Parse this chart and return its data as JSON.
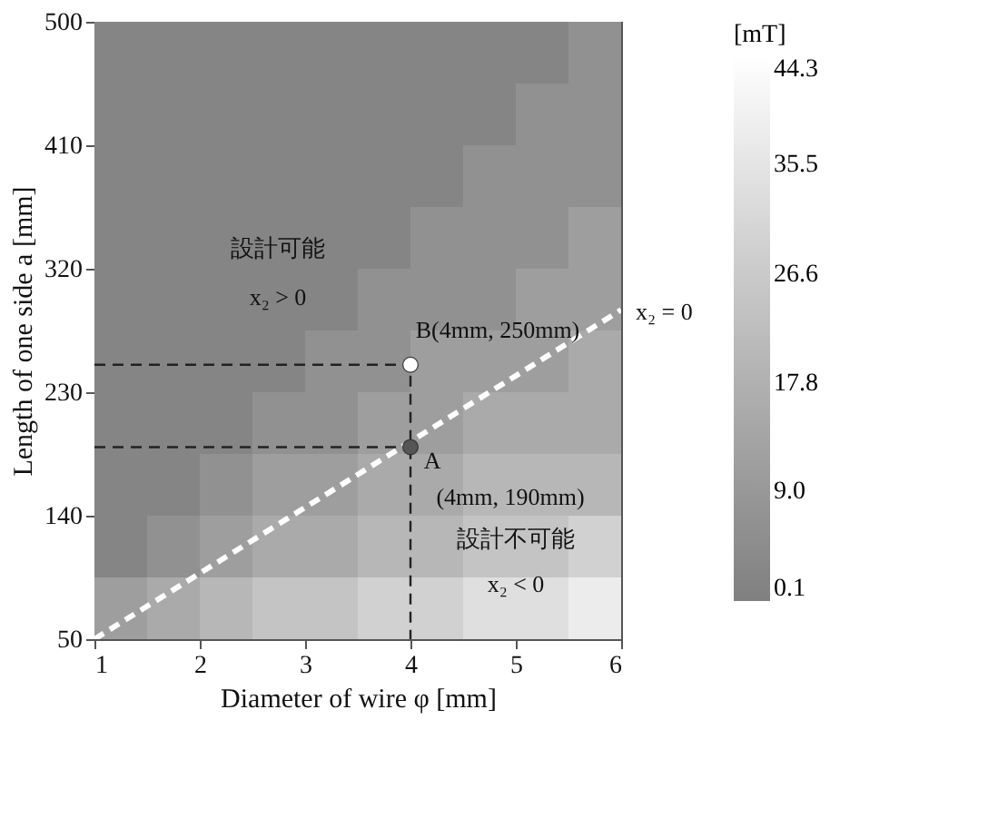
{
  "chart_data": {
    "type": "heatmap",
    "xlabel": "Diameter of wire φ [mm]",
    "ylabel": "Length of one side a [mm]",
    "clabel": "[mT]",
    "x": [
      1.25,
      1.75,
      2.25,
      2.75,
      3.25,
      3.75,
      4.25,
      4.75,
      5.25,
      5.75
    ],
    "y": [
      477.5,
      432.5,
      387.5,
      342.5,
      297.5,
      252.5,
      207.5,
      162.5,
      117.5,
      72.5
    ],
    "cells": [
      [
        2,
        2,
        2,
        2,
        2,
        2,
        2,
        2,
        2,
        6.5
      ],
      [
        2,
        2,
        2,
        2,
        2,
        2,
        2,
        2,
        6.5,
        6.5
      ],
      [
        2,
        2,
        2,
        2,
        2,
        2,
        2,
        6.5,
        6.5,
        6.5
      ],
      [
        2,
        2,
        2,
        2,
        2,
        2,
        6.5,
        6.5,
        6.5,
        11
      ],
      [
        2,
        2,
        2,
        2,
        2,
        6.5,
        6.5,
        6.5,
        11,
        11
      ],
      [
        2,
        2,
        2,
        2,
        6.5,
        6.5,
        11,
        11,
        11,
        15.5
      ],
      [
        2,
        2,
        2,
        6.5,
        6.5,
        11,
        11,
        15.5,
        15.5,
        15.5
      ],
      [
        2,
        2,
        6.5,
        11,
        11,
        15.5,
        15.5,
        20,
        20,
        20
      ],
      [
        2,
        6.5,
        11,
        15.5,
        15.5,
        20,
        20,
        24.5,
        24.5,
        29
      ],
      [
        11,
        15.5,
        20,
        24.5,
        24.5,
        29,
        29,
        33.5,
        33.5,
        38
      ]
    ],
    "clim": [
      0.1,
      44.3
    ],
    "cticks": [
      0.1,
      {
        "value": 9,
        "label": "9.0"
      },
      17.8,
      26.6,
      35.5,
      44.3
    ],
    "xlim": [
      1,
      6
    ],
    "xticks": [
      1,
      2,
      3,
      4,
      5,
      6
    ],
    "ylim": [
      50,
      500
    ],
    "yticks": [
      50,
      140,
      230,
      320,
      410,
      500
    ],
    "series": [
      {
        "type": "line",
        "color": "#ffffff",
        "line_style": "dashed",
        "x": [
          1,
          6
        ],
        "values": [
          50,
          290
        ]
      },
      {
        "type": "line",
        "color": "#222222",
        "line_style": "dashed",
        "x": [
          1,
          4,
          4
        ],
        "values": [
          250,
          250,
          50
        ]
      },
      {
        "type": "line",
        "color": "#222222",
        "line_style": "dashed",
        "x": [
          1,
          4
        ],
        "values": [
          190,
          190
        ]
      },
      {
        "type": "scatter",
        "color": "#ffffff",
        "marker": "circle",
        "x": [
          4
        ],
        "values": [
          250
        ]
      },
      {
        "type": "scatter",
        "color": "#555555",
        "marker": "circle",
        "x": [
          4
        ],
        "values": [
          190
        ]
      }
    ],
    "annotations": [
      "設計可能",
      "x₂ > 0",
      "B(4mm, 250mm)",
      "A",
      "(4mm, 190mm)",
      "設計不可能",
      "x₂ < 0",
      "x₂ = 0"
    ]
  }
}
